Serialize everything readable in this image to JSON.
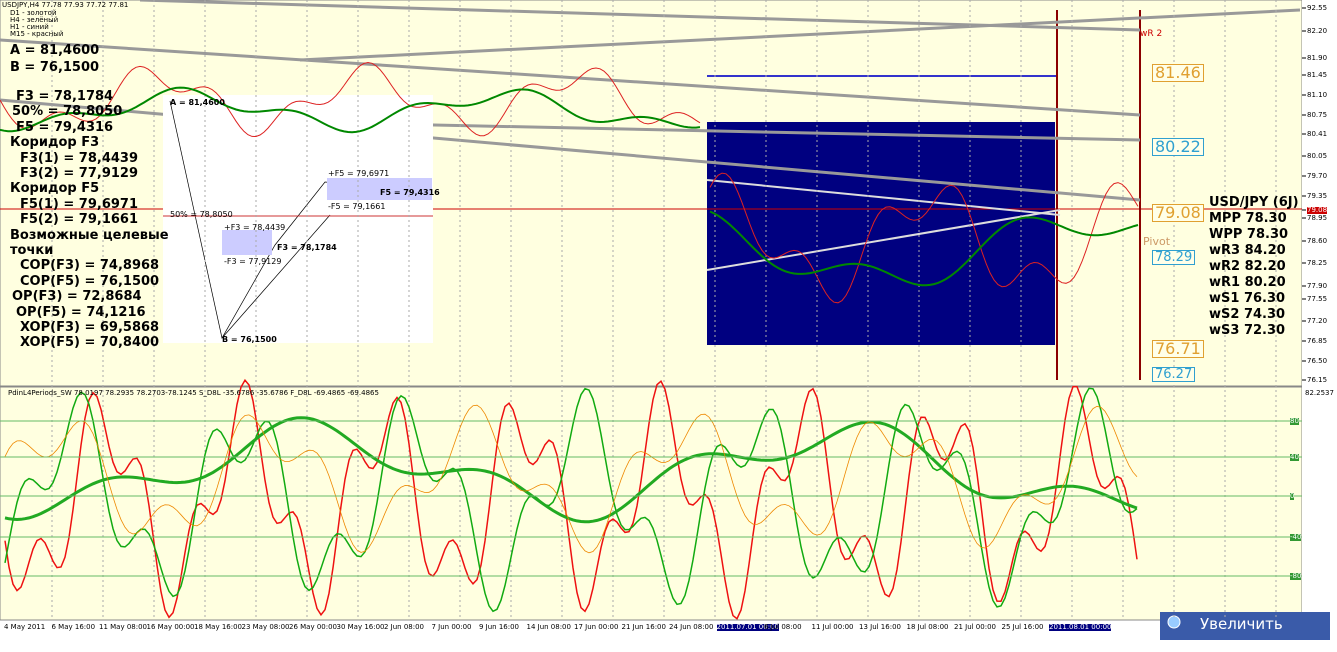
{
  "header": {
    "symbol": "USDJPY,H4  77.78 77.93 77.72 77.81",
    "legend": [
      "D1 - золотой",
      "H4 - зелёный",
      "H1 - синий",
      "M15 - красный"
    ]
  },
  "left_notes": [
    "A = 81,4600",
    "B = 76,1500",
    "F3 = 78,1784",
    "50% = 78,8050",
    "F5 = 79,4316",
    "Коридор F3",
    "F3(1) = 78,4439",
    "F3(2) = 77,9129",
    "Коридор F5",
    "F5(1) = 79,6971",
    "F5(2) = 79,1661",
    "Возможные целевые",
    "точки",
    "COP(F3) = 74,8968",
    "COP(F5) = 76,1500",
    "OP(F3) = 72,8684",
    "OP(F5) = 74,1216",
    "XOP(F3) = 69,5868",
    "XOP(F5) = 70,8400"
  ],
  "inset": {
    "a": "A = 81,4600",
    "half": "50% = 78,8050",
    "f3_plus": "+F3 = 78,4439",
    "f3_minus": "-F3 = 77,9129",
    "f3": "F3 = 78,1784",
    "f5_plus": "+F5 = 79,6971",
    "f5_minus": "-F5 = 79,1661",
    "f5": "F5 = 79,4316",
    "b": "B = 76,1500"
  },
  "pivots": {
    "title": "USD/JPY (6J)",
    "rows": [
      "MPP 78.30",
      "WPP 78.30",
      "wR3 84.20",
      "wR2 82.20",
      "wR1 80.20",
      "wS1 76.30",
      "wS2 74.30",
      "wS3 72.30"
    ]
  },
  "level_boxes": [
    "81.46",
    "80.22",
    "79.08",
    "78.29",
    "76.71",
    "76.27"
  ],
  "small_labels": [
    "wR 2",
    "Pivot"
  ],
  "price_axis": [
    "92.55",
    "82.20",
    "81.90",
    "81.45",
    "81.10",
    "80.75",
    "80.41",
    "80.05",
    "79.70",
    "79.35",
    "79.08",
    "78.95",
    "78.60",
    "78.25",
    "77.90",
    "77.55",
    "77.20",
    "76.85",
    "76.50",
    "76.15"
  ],
  "indicator": {
    "title": "PdinL4Periods_SW 78.0197 78.2935 78.2703-78.1245  S_D8L -35.6786 -35.6786  F_D8L -69.4865 -69.4865",
    "axis_top": "82.2537",
    "levels": [
      "80",
      "40",
      "0",
      "-40",
      "-80"
    ]
  },
  "time_axis": [
    "4 May 2011",
    "6 May 16:00",
    "11 May 08:00",
    "16 May 00:00",
    "18 May 16:00",
    "23 May 08:00",
    "26 May 00:00",
    "30 May 16:00",
    "2 Jun 08:00",
    "7 Jun 00:00",
    "9 Jun 16:00",
    "14 Jun 08:00",
    "17 Jun 00:00",
    "21 Jun 16:00",
    "24 Jun 08:00",
    "2011.07.01 00:00",
    "6 Jul 08:00",
    "11 Jul 00:00",
    "13 Jul 16:00",
    "18 Jul 08:00",
    "21 Jul 00:00",
    "25 Jul 16:00",
    "2011.08.01 00:00"
  ],
  "button": "Увеличить"
}
